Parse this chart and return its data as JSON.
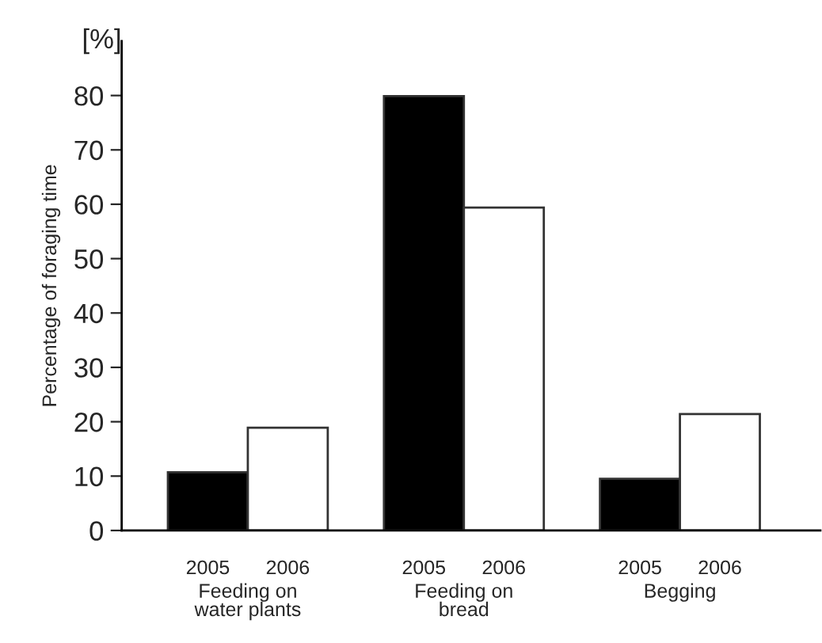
{
  "chart_data": {
    "type": "bar",
    "ylabel": "Percentage of foraging time",
    "annotations": [
      "[%]"
    ],
    "categories": [
      "Feeding on\nwater plants",
      "Feeding on\nbread",
      "Begging"
    ],
    "series": [
      {
        "name": "2005",
        "color": "#000000",
        "values": [
          10.7,
          79.9,
          9.5
        ]
      },
      {
        "name": "2006",
        "color": "#ffffff",
        "values": [
          18.9,
          59.4,
          21.4
        ]
      }
    ],
    "ylim": [
      0,
      90
    ],
    "yticks": [
      0,
      10,
      20,
      30,
      40,
      50,
      60,
      70,
      80
    ],
    "grid": false,
    "legend": false
  }
}
